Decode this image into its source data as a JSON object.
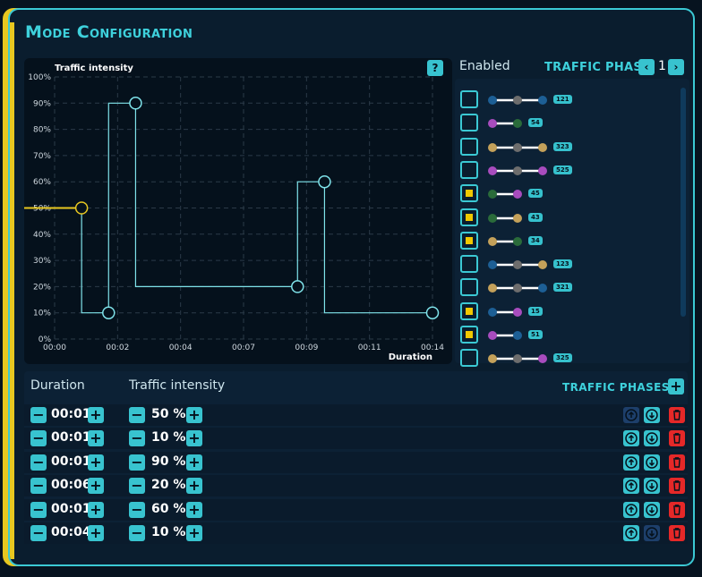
{
  "title": "Mode Configuration",
  "chart": {
    "ylabel": "Traffic intensity",
    "xlabel": "Duration",
    "help_icon": "question-icon"
  },
  "chart_data": {
    "type": "line",
    "xlabel": "Duration",
    "ylabel": "Traffic intensity",
    "x_ticks": [
      "00:00",
      "00:02",
      "00:04",
      "00:07",
      "00:09",
      "00:11",
      "00:14"
    ],
    "y_ticks": [
      "0%",
      "10%",
      "20%",
      "30%",
      "40%",
      "50%",
      "60%",
      "70%",
      "80%",
      "90%",
      "100%"
    ],
    "ylim": [
      0,
      100
    ],
    "xlim_minutes": [
      0,
      14
    ],
    "step_points": [
      {
        "t": 1,
        "v": 50
      },
      {
        "t": 2,
        "v": 10
      },
      {
        "t": 3,
        "v": 90
      },
      {
        "t": 9,
        "v": 20
      },
      {
        "t": 10,
        "v": 60
      },
      {
        "t": 14,
        "v": 10
      }
    ],
    "grid": true
  },
  "phases": {
    "enabled_label": "Enabled",
    "title": "TRAFFIC PHASE",
    "page": "1",
    "prev_icon": "chevron-left-icon",
    "next_icon": "chevron-right-icon",
    "colors": {
      "blue": "#1d5f95",
      "gray": "#6d6d6d",
      "purple": "#a84cbe",
      "green": "#2a6b3a",
      "gold": "#c4a15a"
    },
    "items": [
      {
        "enabled": false,
        "dots": [
          "blue",
          "gray",
          "blue"
        ],
        "code": "121"
      },
      {
        "enabled": false,
        "dots": [
          "purple",
          "green"
        ],
        "code": "54"
      },
      {
        "enabled": false,
        "dots": [
          "gold",
          "gray",
          "gold"
        ],
        "code": "323"
      },
      {
        "enabled": false,
        "dots": [
          "purple",
          "gray",
          "purple"
        ],
        "code": "525"
      },
      {
        "enabled": true,
        "dots": [
          "green",
          "purple"
        ],
        "code": "45"
      },
      {
        "enabled": true,
        "dots": [
          "green",
          "gold"
        ],
        "code": "43"
      },
      {
        "enabled": true,
        "dots": [
          "gold",
          "green"
        ],
        "code": "34"
      },
      {
        "enabled": false,
        "dots": [
          "blue",
          "gray",
          "gold"
        ],
        "code": "123"
      },
      {
        "enabled": false,
        "dots": [
          "gold",
          "gray",
          "blue"
        ],
        "code": "321"
      },
      {
        "enabled": true,
        "dots": [
          "blue",
          "purple"
        ],
        "code": "15"
      },
      {
        "enabled": true,
        "dots": [
          "purple",
          "blue"
        ],
        "code": "51"
      },
      {
        "enabled": false,
        "dots": [
          "gold",
          "gray",
          "purple"
        ],
        "code": "325"
      }
    ]
  },
  "table": {
    "duration_header": "Duration",
    "intensity_header": "Traffic intensity",
    "phases_header": "TRAFFIC  PHASES",
    "add_label": "+",
    "minus_label": "−",
    "plus_label": "+",
    "rows": [
      {
        "duration": "00:01",
        "intensity": "50 %",
        "up_enabled": false,
        "down_enabled": true
      },
      {
        "duration": "00:01",
        "intensity": "10 %",
        "up_enabled": true,
        "down_enabled": true
      },
      {
        "duration": "00:01",
        "intensity": "90 %",
        "up_enabled": true,
        "down_enabled": true
      },
      {
        "duration": "00:06",
        "intensity": "20 %",
        "up_enabled": true,
        "down_enabled": true
      },
      {
        "duration": "00:01",
        "intensity": "60 %",
        "up_enabled": true,
        "down_enabled": true
      },
      {
        "duration": "00:04",
        "intensity": "10 %",
        "up_enabled": true,
        "down_enabled": false
      }
    ]
  },
  "accent_color": "#38c3cf",
  "highlight_color": "#e8c820",
  "danger_color": "#e52828"
}
